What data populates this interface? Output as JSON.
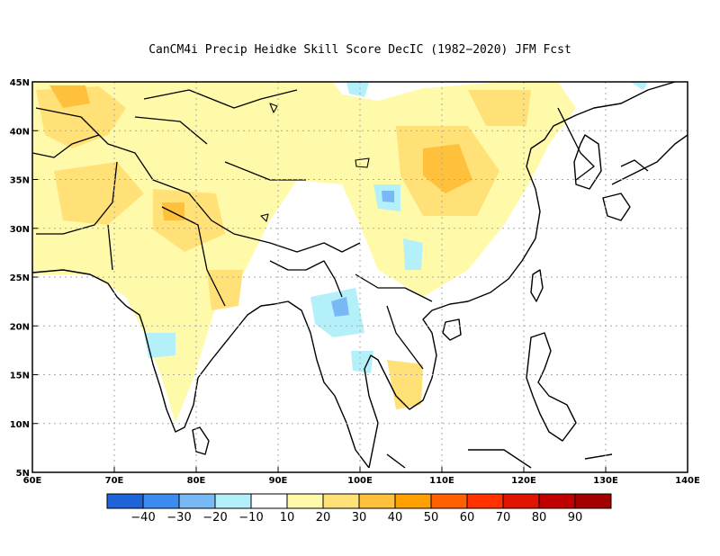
{
  "title": "CanCM4i Precip Heidke Skill Score DecIC (1982−2020) JFM Fcst",
  "map": {
    "lon_range": [
      60,
      140
    ],
    "lat_range": [
      5,
      45
    ],
    "x_ticks": [
      "60E",
      "70E",
      "80E",
      "90E",
      "100E",
      "110E",
      "120E",
      "130E",
      "140E"
    ],
    "y_ticks": [
      "5N",
      "10N",
      "15N",
      "20N",
      "25N",
      "30N",
      "35N",
      "40N",
      "45N"
    ],
    "grid": "dotted",
    "colors": {
      "land_outline": "#000000",
      "gridline": "#aaaaaa"
    }
  },
  "colorbar": {
    "colors": [
      "#1e64d8",
      "#3c8cf0",
      "#78b9f5",
      "#b4f0fa",
      "#ffffff",
      "#fffaaa",
      "#ffe178",
      "#ffc03c",
      "#ffa000",
      "#ff6000",
      "#ff3200",
      "#e11400",
      "#c00000",
      "#a50000"
    ],
    "labels": [
      "−40",
      "−30",
      "−20",
      "−10",
      "10",
      "20",
      "30",
      "40",
      "50",
      "60",
      "70",
      "80",
      "90"
    ]
  }
}
